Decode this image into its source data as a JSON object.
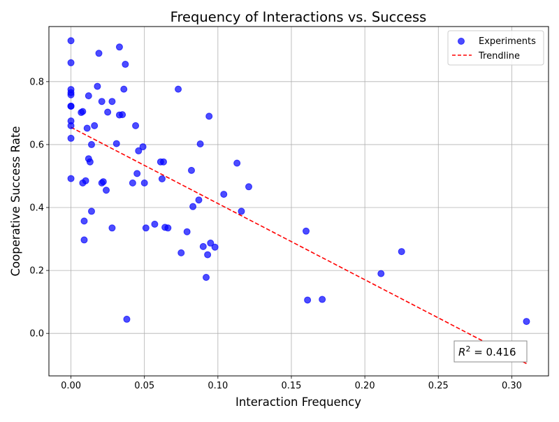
{
  "chart_data": {
    "type": "scatter",
    "title": "Frequency of Interactions vs. Success",
    "xlabel": "Interaction Frequency",
    "ylabel": "Cooperative Success Rate",
    "xlim": [
      -0.015,
      0.325
    ],
    "ylim": [
      -0.135,
      0.975
    ],
    "xticks": [
      0.0,
      0.05,
      0.1,
      0.15,
      0.2,
      0.25,
      0.3
    ],
    "xtick_labels": [
      "0.00",
      "0.05",
      "0.10",
      "0.15",
      "0.20",
      "0.25",
      "0.30"
    ],
    "yticks": [
      0.0,
      0.2,
      0.4,
      0.6,
      0.8
    ],
    "ytick_labels": [
      "0.0",
      "0.2",
      "0.4",
      "0.6",
      "0.8"
    ],
    "grid": true,
    "legend_position": "top-right",
    "legend": [
      {
        "label": "Experiments",
        "kind": "marker",
        "color": "#0000ff"
      },
      {
        "label": "Trendline",
        "kind": "dashed-line",
        "color": "#ff0000"
      }
    ],
    "series": [
      {
        "name": "Experiments",
        "color": "#0000ff",
        "points": [
          [
            0.0,
            0.93
          ],
          [
            0.0,
            0.86
          ],
          [
            0.0,
            0.775
          ],
          [
            0.0,
            0.765
          ],
          [
            0.0,
            0.758
          ],
          [
            0.0,
            0.722
          ],
          [
            0.0,
            0.722
          ],
          [
            0.0,
            0.675
          ],
          [
            0.0,
            0.66
          ],
          [
            0.0,
            0.62
          ],
          [
            0.0,
            0.492
          ],
          [
            0.007,
            0.702
          ],
          [
            0.008,
            0.705
          ],
          [
            0.008,
            0.478
          ],
          [
            0.009,
            0.357
          ],
          [
            0.009,
            0.297
          ],
          [
            0.01,
            0.485
          ],
          [
            0.011,
            0.652
          ],
          [
            0.012,
            0.755
          ],
          [
            0.012,
            0.555
          ],
          [
            0.013,
            0.545
          ],
          [
            0.014,
            0.6
          ],
          [
            0.014,
            0.388
          ],
          [
            0.016,
            0.66
          ],
          [
            0.018,
            0.785
          ],
          [
            0.019,
            0.89
          ],
          [
            0.021,
            0.478
          ],
          [
            0.021,
            0.737
          ],
          [
            0.022,
            0.482
          ],
          [
            0.024,
            0.455
          ],
          [
            0.025,
            0.703
          ],
          [
            0.028,
            0.737
          ],
          [
            0.028,
            0.335
          ],
          [
            0.031,
            0.603
          ],
          [
            0.033,
            0.91
          ],
          [
            0.033,
            0.694
          ],
          [
            0.035,
            0.695
          ],
          [
            0.036,
            0.776
          ],
          [
            0.037,
            0.855
          ],
          [
            0.038,
            0.045
          ],
          [
            0.042,
            0.478
          ],
          [
            0.044,
            0.66
          ],
          [
            0.045,
            0.508
          ],
          [
            0.046,
            0.58
          ],
          [
            0.049,
            0.593
          ],
          [
            0.05,
            0.478
          ],
          [
            0.051,
            0.335
          ],
          [
            0.057,
            0.347
          ],
          [
            0.061,
            0.545
          ],
          [
            0.062,
            0.491
          ],
          [
            0.063,
            0.545
          ],
          [
            0.064,
            0.337
          ],
          [
            0.066,
            0.335
          ],
          [
            0.073,
            0.776
          ],
          [
            0.075,
            0.256
          ],
          [
            0.079,
            0.323
          ],
          [
            0.082,
            0.518
          ],
          [
            0.083,
            0.403
          ],
          [
            0.087,
            0.424
          ],
          [
            0.088,
            0.602
          ],
          [
            0.09,
            0.276
          ],
          [
            0.092,
            0.178
          ],
          [
            0.093,
            0.25
          ],
          [
            0.094,
            0.69
          ],
          [
            0.095,
            0.287
          ],
          [
            0.098,
            0.274
          ],
          [
            0.104,
            0.442
          ],
          [
            0.113,
            0.541
          ],
          [
            0.116,
            0.388
          ],
          [
            0.121,
            0.466
          ],
          [
            0.16,
            0.325
          ],
          [
            0.161,
            0.106
          ],
          [
            0.171,
            0.108
          ],
          [
            0.211,
            0.19
          ],
          [
            0.225,
            0.26
          ],
          [
            0.31,
            0.038
          ]
        ]
      },
      {
        "name": "Trendline",
        "color": "#ff0000",
        "style": "dashed",
        "points": [
          [
            0.0,
            0.655
          ],
          [
            0.31,
            -0.096
          ]
        ]
      }
    ],
    "annotation": {
      "label": "R² = 0.416",
      "prefix": "R",
      "superscript": "2",
      "suffix": " = 0.416",
      "position": "bottom-right"
    }
  }
}
